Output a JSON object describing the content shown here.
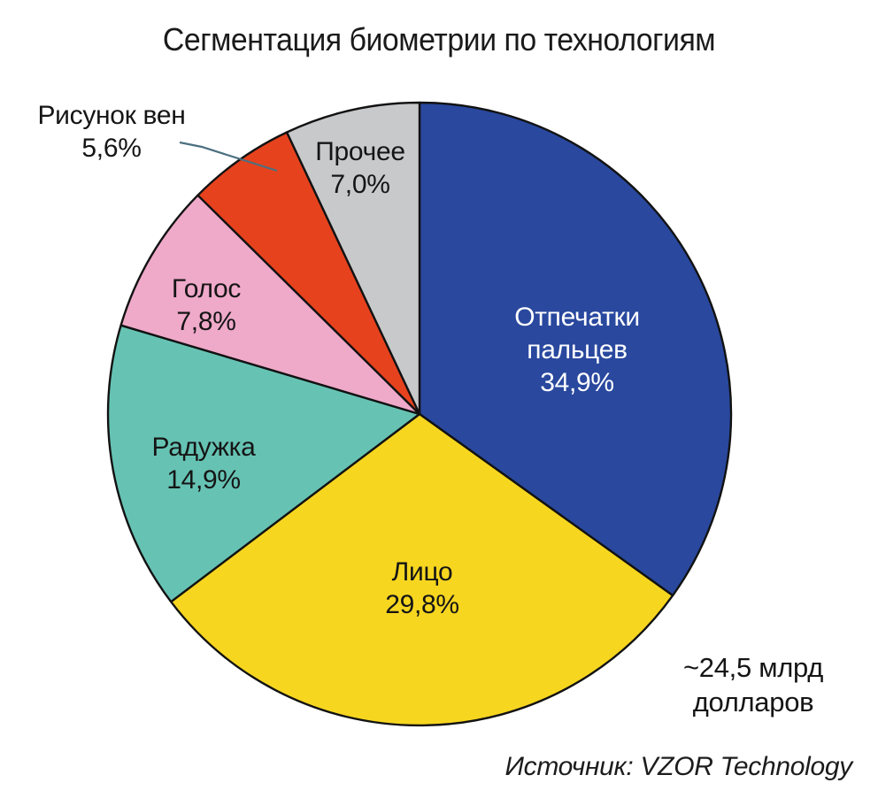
{
  "chart_data": {
    "type": "pie",
    "title": "Сегментация биометрии по технологиям",
    "start_angle": "12 o'clock",
    "direction": "clockwise",
    "legend": "none (labels on slices)",
    "outline_color": "#121212",
    "leader_line_color": "#4b7080",
    "annotation": "~24,5 млрд\nдолларов",
    "source": "Источник: VZOR Technology",
    "slices": [
      {
        "key": "fingerprints",
        "label": "Отпечатки пальцев",
        "value": 34.9,
        "display": "34,9%",
        "color": "#29489e",
        "text_color": "#ffffff",
        "label_placement": "inside"
      },
      {
        "key": "face",
        "label": "Лицо",
        "value": 29.8,
        "display": "29,8%",
        "color": "#f7d620",
        "text_color": "#151515",
        "label_placement": "inside"
      },
      {
        "key": "iris",
        "label": "Радужка",
        "value": 14.9,
        "display": "14,9%",
        "color": "#66c3b4",
        "text_color": "#151515",
        "label_placement": "inside"
      },
      {
        "key": "voice",
        "label": "Голос",
        "value": 7.8,
        "display": "7,8%",
        "color": "#efa9c9",
        "text_color": "#151515",
        "label_placement": "inside"
      },
      {
        "key": "veins",
        "label": "Рисунок вен",
        "value": 5.6,
        "display": "5,6%",
        "color": "#e7421e",
        "text_color": "#151515",
        "label_placement": "outside-with-leader-line"
      },
      {
        "key": "other",
        "label": "Прочее",
        "value": 7.0,
        "display": "7,0%",
        "color": "#c7c9cb",
        "text_color": "#151515",
        "label_placement": "inside"
      }
    ]
  }
}
